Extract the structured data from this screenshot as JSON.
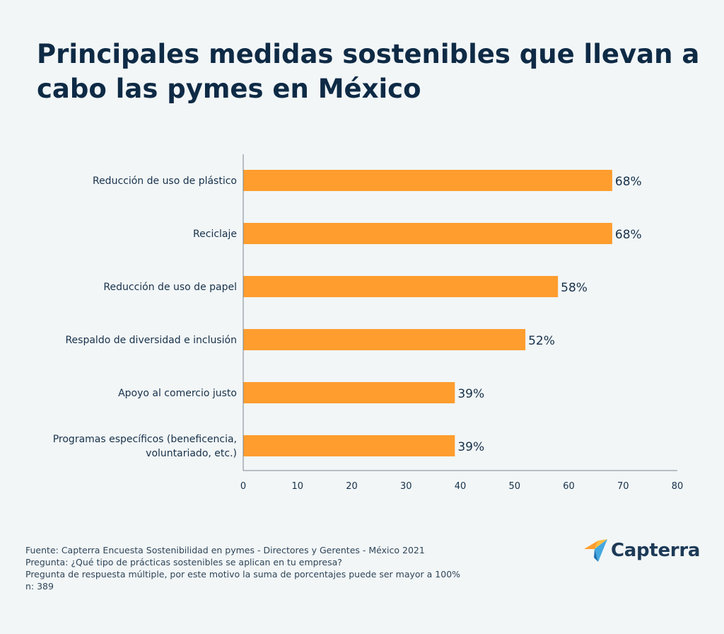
{
  "title": "Principales medidas sostenibles que llevan a cabo las pymes en México",
  "colors": {
    "bar": "#ff9d2e",
    "text": "#17314a",
    "axis": "#7a8690",
    "background": "#f2f6f7"
  },
  "chart_data": {
    "type": "bar",
    "orientation": "horizontal",
    "categories": [
      "Reducción de uso de plástico",
      "Reciclaje",
      "Reducción de uso de papel",
      "Respaldo de diversidad e inclusión",
      "Apoyo al comercio justo",
      "Programas específicos (beneficencia, voluntariado, etc.)"
    ],
    "category_lines": [
      [
        "Reducción de uso de plástico"
      ],
      [
        "Reciclaje"
      ],
      [
        "Reducción de uso de papel"
      ],
      [
        "Respaldo de diversidad e inclusión"
      ],
      [
        "Apoyo al comercio justo"
      ],
      [
        "Programas específicos (beneficencia,",
        "voluntariado, etc.)"
      ]
    ],
    "values": [
      68,
      68,
      58,
      52,
      39,
      39
    ],
    "value_labels": [
      "68%",
      "68%",
      "58%",
      "52%",
      "39%",
      "39%"
    ],
    "xlim": [
      0,
      80
    ],
    "xticks": [
      0,
      10,
      20,
      30,
      40,
      50,
      60,
      70,
      80
    ],
    "xlabel": "",
    "ylabel": "",
    "grid": false
  },
  "footer": {
    "source": "Fuente: Capterra Encuesta Sostenibilidad en pymes - Directores y Gerentes - México 2021",
    "question": "Pregunta: ¿Qué tipo de prácticas sostenibles se aplican en tu empresa?",
    "note": "Pregunta de respuesta múltiple, por este motivo la suma de porcentajes puede ser mayor a 100%",
    "sample": "n: 389"
  },
  "logo": {
    "text": "Capterra",
    "icon": "capterra-arrow-icon"
  }
}
